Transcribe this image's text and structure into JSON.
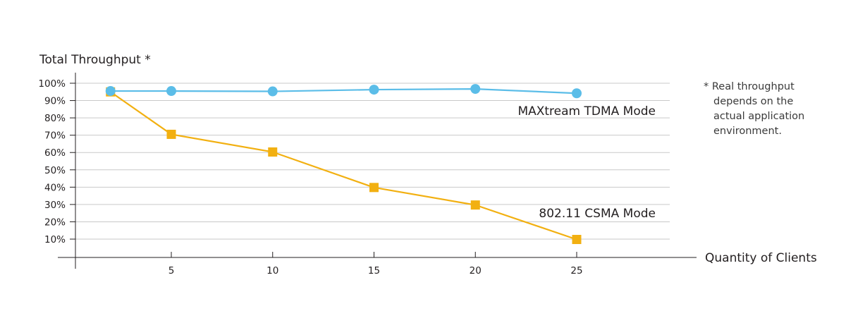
{
  "chart_data": {
    "type": "line",
    "ylabel": "Total Throughput *",
    "xlabel": "Quantity of Clients",
    "x": [
      2,
      5,
      10,
      15,
      20,
      25
    ],
    "x_ticks": [
      5,
      10,
      15,
      20,
      25
    ],
    "y_ticks": [
      10,
      20,
      30,
      40,
      50,
      60,
      70,
      80,
      90,
      100
    ],
    "y_tick_labels": [
      "10%",
      "20%",
      "30%",
      "40%",
      "50%",
      "60%",
      "70%",
      "80%",
      "90%",
      "100%"
    ],
    "xlim": [
      0,
      29.2
    ],
    "ylim": [
      0,
      101
    ],
    "grid": "horizontal",
    "series": [
      {
        "name": "MAXtream TDMA Mode",
        "marker": "circle",
        "color": "#5bbde8",
        "values": [
          95.5,
          95.5,
          95.3,
          96.3,
          96.7,
          94.2
        ]
      },
      {
        "name": "802.11 CSMA Mode",
        "marker": "square",
        "color": "#f2b011",
        "values": [
          95,
          70.5,
          60.3,
          39.8,
          29.7,
          9.8
        ]
      }
    ]
  },
  "footnote": {
    "lines": [
      "* Real throughput",
      "depends on the",
      "actual application",
      "environment."
    ]
  }
}
